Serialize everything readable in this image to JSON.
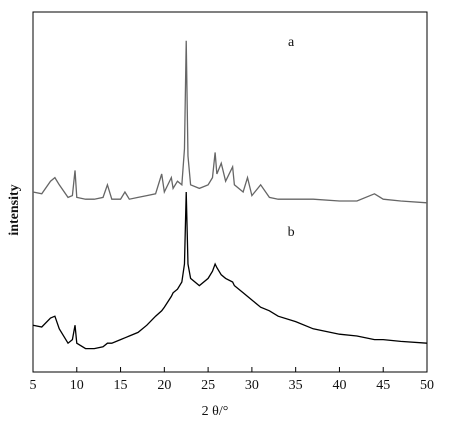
{
  "chart_data": {
    "type": "line",
    "x_label": "2 θ/°",
    "y_label": "intensity",
    "x": [
      5,
      6,
      7,
      7.5,
      8,
      9,
      9.5,
      9.8,
      10,
      11,
      12,
      13,
      13.5,
      14,
      15,
      15.5,
      16,
      17,
      18,
      19,
      19.7,
      20,
      20.8,
      21,
      21.5,
      22,
      22.3,
      22.5,
      22.7,
      23,
      24,
      25,
      25.5,
      25.8,
      26,
      26.5,
      27,
      27.8,
      28,
      29,
      29.5,
      30,
      31,
      32,
      33,
      35,
      37,
      40,
      42,
      44,
      45,
      47,
      50
    ],
    "series": [
      {
        "name": "a",
        "color": "#666666",
        "values": [
          50,
          49.5,
          53,
          54,
          52,
          48.5,
          49,
          56,
          48.5,
          48,
          48,
          48.5,
          52,
          48,
          48,
          50,
          48,
          48.5,
          49,
          49.5,
          55,
          50,
          54,
          51,
          53,
          52,
          62,
          92,
          60,
          52,
          51,
          52,
          54,
          61,
          55,
          58,
          53,
          57,
          52,
          50,
          54,
          49,
          52,
          48.5,
          48,
          48,
          48,
          47.5,
          47.5,
          49.5,
          48,
          47.5,
          47
        ]
      },
      {
        "name": "b",
        "color": "#000000",
        "values": [
          13,
          12.5,
          15,
          15.5,
          12,
          8,
          9,
          13,
          8,
          6.5,
          6.5,
          7,
          8,
          8,
          9,
          9.5,
          10,
          11,
          13,
          15.5,
          17,
          18,
          21,
          22,
          23,
          25,
          30,
          50,
          30,
          26,
          24,
          26,
          28,
          30,
          29,
          27,
          26,
          25,
          24,
          22,
          21,
          20,
          18,
          17,
          15.5,
          14,
          12,
          10.5,
          10,
          9,
          9,
          8.5,
          8
        ]
      }
    ],
    "xlim": [
      5,
      50
    ],
    "xticks": [
      5,
      10,
      15,
      20,
      25,
      30,
      35,
      40,
      45,
      50
    ],
    "ylim": [
      0,
      100
    ]
  }
}
